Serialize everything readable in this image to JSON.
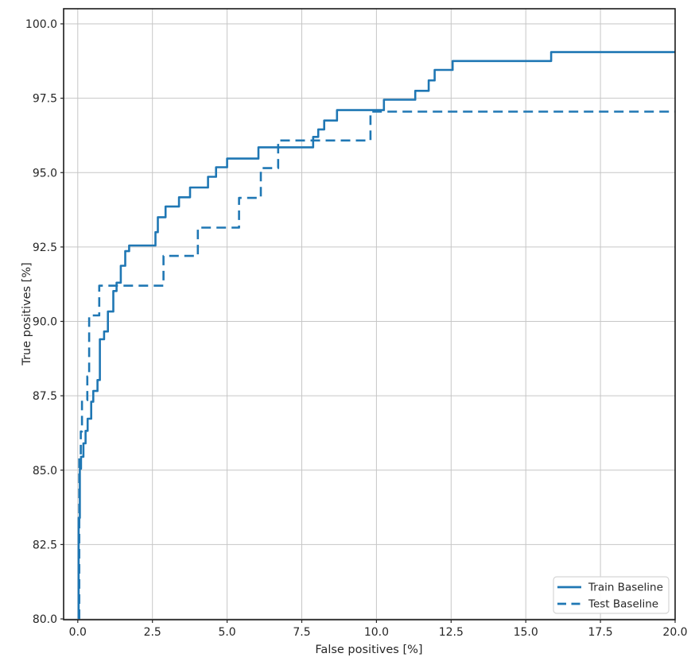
{
  "chart_data": {
    "type": "line",
    "subtype": "step-roc",
    "title": "",
    "xlabel": "False positives [%]",
    "ylabel": "True positives [%]",
    "xlim": [
      -0.47,
      20.0
    ],
    "ylim": [
      80.0,
      100.5
    ],
    "grid": true,
    "legend_position": "lower right",
    "line_color": "#1f77b4",
    "grid_color": "#c6c6c6",
    "axis_color": "#262626",
    "xticks": {
      "values": [
        0.0,
        2.5,
        5.0,
        7.5,
        10.0,
        12.5,
        15.0,
        17.5,
        20.0
      ],
      "labels": [
        "0.0",
        "2.5",
        "5.0",
        "7.5",
        "10.0",
        "12.5",
        "15.0",
        "17.5",
        "20.0"
      ]
    },
    "yticks": {
      "values": [
        80.0,
        82.5,
        85.0,
        87.5,
        90.0,
        92.5,
        95.0,
        97.5,
        100.0
      ],
      "labels": [
        "80.0",
        "82.5",
        "85.0",
        "87.5",
        "90.0",
        "92.5",
        "95.0",
        "97.5",
        "100.0"
      ]
    },
    "series": [
      {
        "name": "Train Baseline",
        "style": "solid",
        "points": [
          [
            0.03,
            80.0
          ],
          [
            0.03,
            83.4
          ],
          [
            0.07,
            83.4
          ],
          [
            0.07,
            85.05
          ],
          [
            0.11,
            85.05
          ],
          [
            0.11,
            85.45
          ],
          [
            0.19,
            85.45
          ],
          [
            0.19,
            85.9
          ],
          [
            0.26,
            85.9
          ],
          [
            0.26,
            86.32
          ],
          [
            0.33,
            86.32
          ],
          [
            0.33,
            86.73
          ],
          [
            0.45,
            86.73
          ],
          [
            0.45,
            87.3
          ],
          [
            0.52,
            87.3
          ],
          [
            0.52,
            87.66
          ],
          [
            0.66,
            87.66
          ],
          [
            0.66,
            88.03
          ],
          [
            0.74,
            88.03
          ],
          [
            0.74,
            89.4
          ],
          [
            0.88,
            89.4
          ],
          [
            0.88,
            89.66
          ],
          [
            1.01,
            89.66
          ],
          [
            1.01,
            90.33
          ],
          [
            1.19,
            90.33
          ],
          [
            1.19,
            91.02
          ],
          [
            1.3,
            91.02
          ],
          [
            1.3,
            91.3
          ],
          [
            1.44,
            91.3
          ],
          [
            1.44,
            91.87
          ],
          [
            1.59,
            91.87
          ],
          [
            1.59,
            92.36
          ],
          [
            1.72,
            92.36
          ],
          [
            1.72,
            92.55
          ],
          [
            2.6,
            92.55
          ],
          [
            2.6,
            93.0
          ],
          [
            2.68,
            93.0
          ],
          [
            2.68,
            93.5
          ],
          [
            2.94,
            93.5
          ],
          [
            2.94,
            93.86
          ],
          [
            3.39,
            93.86
          ],
          [
            3.39,
            94.17
          ],
          [
            3.76,
            94.17
          ],
          [
            3.76,
            94.5
          ],
          [
            4.36,
            94.5
          ],
          [
            4.36,
            94.86
          ],
          [
            4.63,
            94.86
          ],
          [
            4.63,
            95.18
          ],
          [
            5.0,
            95.18
          ],
          [
            5.0,
            95.47
          ],
          [
            6.05,
            95.47
          ],
          [
            6.05,
            95.85
          ],
          [
            7.88,
            95.85
          ],
          [
            7.88,
            96.2
          ],
          [
            8.05,
            96.2
          ],
          [
            8.05,
            96.45
          ],
          [
            8.25,
            96.45
          ],
          [
            8.25,
            96.75
          ],
          [
            8.68,
            96.75
          ],
          [
            8.68,
            97.1
          ],
          [
            10.25,
            97.1
          ],
          [
            10.25,
            97.45
          ],
          [
            11.3,
            97.45
          ],
          [
            11.3,
            97.75
          ],
          [
            11.75,
            97.75
          ],
          [
            11.75,
            98.1
          ],
          [
            11.95,
            98.1
          ],
          [
            11.95,
            98.45
          ],
          [
            12.55,
            98.45
          ],
          [
            12.55,
            98.75
          ],
          [
            15.85,
            98.75
          ],
          [
            15.85,
            99.05
          ],
          [
            20.0,
            99.05
          ]
        ]
      },
      {
        "name": "Test Baseline",
        "style": "dashed",
        "points": [
          [
            0.05,
            80.0
          ],
          [
            0.05,
            85.5
          ],
          [
            0.1,
            85.5
          ],
          [
            0.1,
            86.3
          ],
          [
            0.14,
            86.3
          ],
          [
            0.14,
            87.35
          ],
          [
            0.32,
            87.35
          ],
          [
            0.32,
            88.15
          ],
          [
            0.38,
            88.15
          ],
          [
            0.38,
            90.2
          ],
          [
            0.72,
            90.2
          ],
          [
            0.72,
            91.2
          ],
          [
            2.87,
            91.2
          ],
          [
            2.87,
            92.2
          ],
          [
            4.02,
            92.2
          ],
          [
            4.02,
            93.15
          ],
          [
            5.4,
            93.15
          ],
          [
            5.4,
            94.15
          ],
          [
            6.13,
            94.15
          ],
          [
            6.13,
            95.15
          ],
          [
            6.71,
            95.15
          ],
          [
            6.71,
            96.08
          ],
          [
            9.8,
            96.08
          ],
          [
            9.8,
            97.05
          ],
          [
            20.0,
            97.05
          ]
        ]
      }
    ],
    "legend": {
      "items": [
        {
          "label": "Train Baseline",
          "style": "solid"
        },
        {
          "label": "Test Baseline",
          "style": "dashed"
        }
      ]
    }
  }
}
